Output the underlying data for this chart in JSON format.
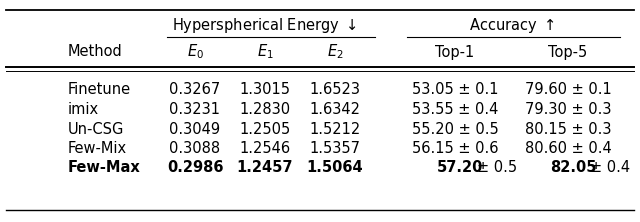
{
  "group_header_1": "Hyperspherical Energy $\\downarrow$",
  "group_header_2": "Accuracy $\\uparrow$",
  "sub_headers": [
    "Method",
    "$E_0$",
    "$E_1$",
    "$E_2$",
    "Top-1",
    "Top-5"
  ],
  "rows": [
    [
      "Finetune",
      "0.3267",
      "1.3015",
      "1.6523",
      "53.05 ± 0.1",
      "79.60 ± 0.1"
    ],
    [
      "imix",
      "0.3231",
      "1.2830",
      "1.6342",
      "53.55 ± 0.4",
      "79.30 ± 0.3"
    ],
    [
      "Un-CSG",
      "0.3049",
      "1.2505",
      "1.5212",
      "55.20 ± 0.5",
      "80.15 ± 0.3"
    ],
    [
      "Few-Mix",
      "0.3088",
      "1.2546",
      "1.5357",
      "56.15 ± 0.6",
      "80.60 ± 0.4"
    ],
    [
      "Few-Max",
      "0.2986",
      "1.2457",
      "1.5064",
      "57.20 ± 0.5",
      "82.05 ± 0.4"
    ]
  ],
  "bold_row": 4,
  "bold_number_cols": [
    4,
    5
  ],
  "bold_number_values": [
    "57.20",
    "82.05"
  ],
  "bold_pm_parts": [
    "± 0.5",
    "± 0.4"
  ],
  "background_color": "#ffffff",
  "text_color": "#000000",
  "fontsize": 10.5
}
